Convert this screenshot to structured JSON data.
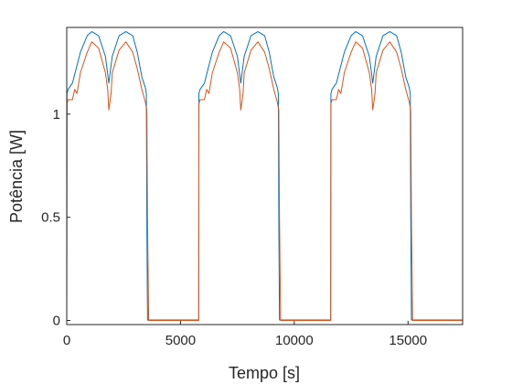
{
  "chart_data": {
    "type": "line",
    "title": "",
    "xlabel": "Tempo [s]",
    "ylabel": "Potência [W]",
    "xlim": [
      0,
      17400
    ],
    "ylim": [
      -0.02,
      1.42
    ],
    "xticks": [
      0,
      5000,
      10000,
      15000
    ],
    "xtick_labels": [
      "0",
      "5000",
      "10000",
      "15000"
    ],
    "yticks": [
      0,
      0.5,
      1
    ],
    "ytick_labels": [
      "0",
      "0.5",
      "1"
    ],
    "grid": false,
    "legend": "none",
    "series": [
      {
        "color": "#0072BD",
        "x": [
          0,
          10,
          60,
          250,
          600,
          900,
          1100,
          1400,
          1700,
          1850,
          2000,
          2300,
          2600,
          2900,
          3100,
          3300,
          3450,
          3500,
          3520,
          3550,
          3600,
          3650,
          5800,
          5810,
          5860,
          6050,
          6400,
          6700,
          6900,
          7200,
          7500,
          7650,
          7800,
          8100,
          8400,
          8700,
          8900,
          9100,
          9250,
          9300,
          9320,
          9350,
          9400,
          9450,
          11600,
          11610,
          11660,
          11850,
          12200,
          12500,
          12700,
          13000,
          13300,
          13450,
          13600,
          13900,
          14200,
          14500,
          14700,
          14900,
          15050,
          15100,
          15120,
          15150,
          15200,
          15250,
          17400
        ],
        "y": [
          0,
          1.1,
          1.12,
          1.15,
          1.3,
          1.38,
          1.4,
          1.38,
          1.28,
          1.15,
          1.28,
          1.38,
          1.4,
          1.38,
          1.3,
          1.18,
          1.13,
          1.1,
          0.5,
          0.002,
          0.002,
          0.002,
          0.002,
          1.1,
          1.12,
          1.15,
          1.3,
          1.38,
          1.4,
          1.38,
          1.28,
          1.15,
          1.28,
          1.38,
          1.4,
          1.38,
          1.3,
          1.18,
          1.13,
          1.1,
          0.5,
          0.002,
          0.002,
          0.002,
          0.002,
          1.1,
          1.12,
          1.15,
          1.3,
          1.38,
          1.4,
          1.38,
          1.28,
          1.15,
          1.28,
          1.38,
          1.4,
          1.38,
          1.3,
          1.18,
          1.13,
          1.1,
          0.5,
          0.002,
          0.002,
          0.002,
          0.002
        ]
      },
      {
        "color": "#D95319",
        "x": [
          0,
          10,
          60,
          250,
          350,
          450,
          600,
          900,
          1100,
          1400,
          1700,
          1800,
          1850,
          1950,
          2000,
          2300,
          2600,
          2900,
          3100,
          3300,
          3450,
          3520,
          3550,
          3600,
          3650,
          5800,
          5810,
          5860,
          6050,
          6150,
          6250,
          6400,
          6700,
          6900,
          7200,
          7500,
          7600,
          7650,
          7750,
          7800,
          8100,
          8400,
          8700,
          8900,
          9100,
          9250,
          9320,
          9350,
          9400,
          9450,
          11600,
          11610,
          11660,
          11850,
          11950,
          12050,
          12200,
          12500,
          12700,
          13000,
          13300,
          13400,
          13450,
          13550,
          13600,
          13900,
          14200,
          14500,
          14700,
          14900,
          15050,
          15120,
          15150,
          15200,
          15250,
          17400
        ],
        "y": [
          0,
          1.05,
          1.07,
          1.07,
          1.12,
          1.1,
          1.2,
          1.3,
          1.35,
          1.32,
          1.2,
          1.12,
          1.02,
          1.1,
          1.2,
          1.31,
          1.35,
          1.3,
          1.22,
          1.12,
          1.06,
          1.02,
          0.5,
          0,
          0,
          0,
          1.05,
          1.07,
          1.07,
          1.12,
          1.1,
          1.2,
          1.3,
          1.35,
          1.32,
          1.2,
          1.12,
          1.02,
          1.1,
          1.2,
          1.31,
          1.35,
          1.3,
          1.22,
          1.12,
          1.06,
          1.02,
          0.5,
          0,
          0,
          0,
          1.05,
          1.07,
          1.07,
          1.12,
          1.1,
          1.2,
          1.3,
          1.35,
          1.32,
          1.2,
          1.12,
          1.02,
          1.1,
          1.2,
          1.31,
          1.35,
          1.3,
          1.22,
          1.12,
          1.06,
          1.02,
          0.5,
          0,
          0,
          0
        ]
      }
    ]
  }
}
